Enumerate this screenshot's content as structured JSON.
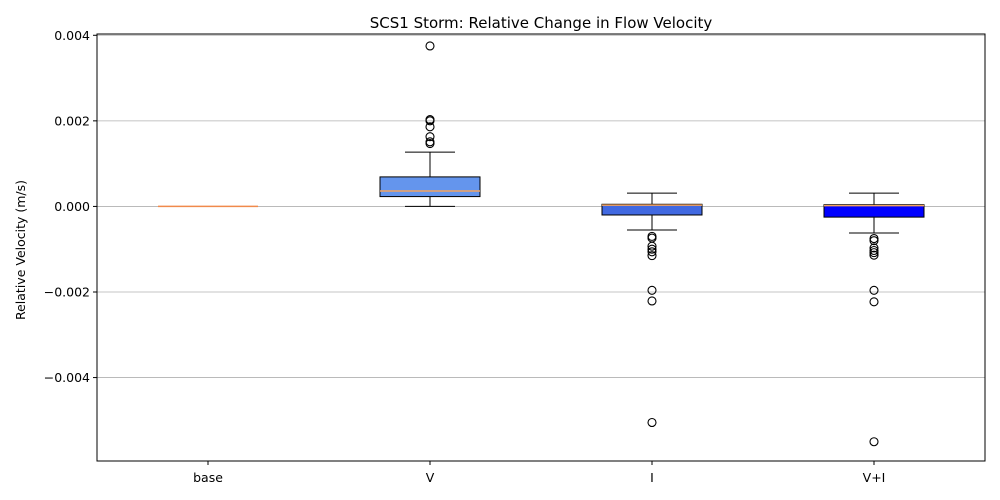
{
  "chart_data": {
    "type": "box",
    "title": "SCS1 Storm: Relative Change in Flow Velocity",
    "xlabel": "",
    "ylabel": "Relative Velocity (m/s)",
    "ylim": [
      -0.00595,
      0.00403
    ],
    "yticks": [
      0.004,
      0.002,
      0.0,
      -0.002,
      -0.004
    ],
    "ytick_labels": [
      "0.004",
      "0.002",
      "0.000",
      "−0.002",
      "−0.004"
    ],
    "grid": "horizontal",
    "categories": [
      "base",
      "V",
      "I",
      "V+I"
    ],
    "boxes": [
      {
        "category": "base",
        "whisker_low": 0.0,
        "q1": 0.0,
        "median": 0.0,
        "q3": 0.0,
        "whisker_high": 0.0,
        "fill": "#ffffff",
        "outliers": []
      },
      {
        "category": "V",
        "whisker_low": 0.0,
        "q1": 0.00023,
        "median": 0.00036,
        "q3": 0.00069,
        "whisker_high": 0.00127,
        "fill": "#6495ed",
        "outliers": [
          0.00375,
          0.00203,
          0.002,
          0.00186,
          0.00163,
          0.00151,
          0.00147
        ]
      },
      {
        "category": "I",
        "whisker_low": -0.00055,
        "q1": -0.0002,
        "median": 3e-05,
        "q3": 5e-05,
        "whisker_high": 0.00031,
        "fill": "#4169e1",
        "outliers": [
          -0.0007,
          -0.00074,
          -0.00093,
          -0.001,
          -0.00106,
          -0.00115,
          -0.00196,
          -0.00221,
          -0.00505
        ]
      },
      {
        "category": "V+I",
        "whisker_low": -0.00062,
        "q1": -0.00025,
        "median": 2e-05,
        "q3": 4e-05,
        "whisker_high": 0.00031,
        "fill": "#0000ff",
        "outliers": [
          -0.00075,
          -0.0008,
          -0.00097,
          -0.00103,
          -0.00108,
          -0.00114,
          -0.00196,
          -0.00223,
          -0.0055
        ]
      }
    ],
    "median_color": "#f4a460",
    "base_line_color": "#f08a4b"
  }
}
